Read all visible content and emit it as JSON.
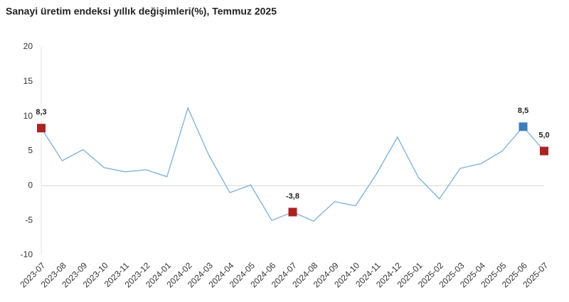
{
  "chart_data": {
    "type": "line",
    "title": "Sanayi üretim endeksi yıllık değişimleri(%), Temmuz 2025",
    "categories": [
      "2023-07",
      "2023-08",
      "2023-09",
      "2023-10",
      "2023-11",
      "2023-12",
      "2024-01",
      "2024-02",
      "2024-03",
      "2024-04",
      "2024-05",
      "2024-06",
      "2024-07",
      "2024-08",
      "2024-09",
      "2024-10",
      "2024-11",
      "2024-12",
      "2025-01",
      "2025-02",
      "2025-03",
      "2025-04",
      "2025-05",
      "2025-06",
      "2025-07"
    ],
    "values": [
      8.3,
      3.6,
      5.2,
      2.6,
      2.0,
      2.3,
      1.3,
      11.2,
      4.4,
      -1.0,
      0.1,
      -5.0,
      -3.8,
      -5.1,
      -2.3,
      -2.9,
      1.7,
      7.0,
      1.2,
      -1.9,
      2.5,
      3.2,
      5.0,
      8.5,
      5.0
    ],
    "value_labels": [
      "8,3",
      null,
      null,
      null,
      null,
      null,
      null,
      null,
      null,
      null,
      null,
      null,
      "-3,8",
      null,
      null,
      null,
      null,
      null,
      null,
      null,
      null,
      null,
      null,
      "8,5",
      "5,0"
    ],
    "marker_colors": [
      "#a82323",
      null,
      null,
      null,
      null,
      null,
      null,
      null,
      null,
      null,
      null,
      null,
      "#a82323",
      null,
      null,
      null,
      null,
      null,
      null,
      null,
      null,
      null,
      null,
      "#3f7db8",
      "#a82323"
    ],
    "color": "#7aaedb",
    "ylim": [
      -10,
      20
    ],
    "yticks": [
      -10,
      -5,
      0,
      5,
      10,
      15,
      20
    ]
  }
}
